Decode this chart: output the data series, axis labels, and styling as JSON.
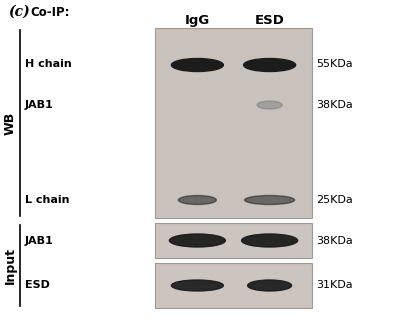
{
  "figure_label": "(c)",
  "coip_label": "Co-IP:",
  "col_labels": [
    "IgG",
    "ESD"
  ],
  "background_color": "#ffffff",
  "gel_bg_wb": "#c9c2bc",
  "gel_bg_input": "#ccc5bf",
  "band_color_dark": "#1c1c1c",
  "band_color_medium": "#666666",
  "wb_label": "WB",
  "input_label": "Input",
  "row_labels_wb": [
    "H chain",
    "JAB1",
    "L chain"
  ],
  "row_labels_input": [
    "JAB1",
    "ESD"
  ],
  "size_labels_wb": [
    "55KDa",
    "38KDa",
    "25KDa"
  ],
  "size_labels_input": [
    "38KDa",
    "31KDa"
  ],
  "figsize": [
    4.01,
    3.22
  ],
  "dpi": 100
}
